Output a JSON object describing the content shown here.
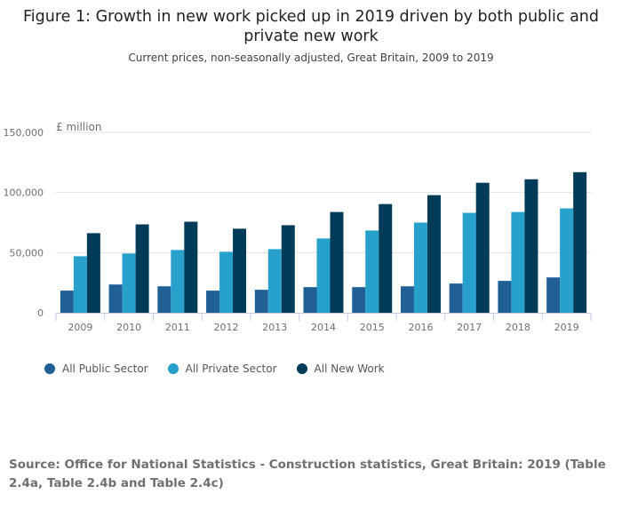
{
  "chart_data": {
    "type": "bar",
    "title": "Figure 1: Growth in new work picked up in 2019 driven by both public and private new work",
    "subtitle": "Current prices, non-seasonally adjusted, Great Britain, 2009 to 2019",
    "ylabel": "£ million",
    "xlabel": "",
    "ylim": [
      0,
      150000
    ],
    "yticks": [
      0,
      50000,
      100000,
      150000
    ],
    "ytick_labels": [
      "0",
      "50,000",
      "100,000",
      "150,000"
    ],
    "grid": true,
    "legend_position": "bottom-left",
    "categories": [
      "2009",
      "2010",
      "2011",
      "2012",
      "2013",
      "2014",
      "2015",
      "2016",
      "2017",
      "2018",
      "2019"
    ],
    "series": [
      {
        "name": "All Public Sector",
        "color": "#206095",
        "values": [
          18400,
          23500,
          22000,
          18400,
          19100,
          21300,
          21300,
          22000,
          24300,
          26500,
          29400
        ]
      },
      {
        "name": "All Private Sector",
        "color": "#27a0cc",
        "values": [
          47000,
          49300,
          52200,
          50700,
          52900,
          61800,
          68400,
          75000,
          83100,
          83800,
          86800
        ]
      },
      {
        "name": "All New Work",
        "color": "#003c57",
        "values": [
          66200,
          73500,
          75700,
          69900,
          72800,
          83800,
          90400,
          97800,
          108100,
          111000,
          116900
        ]
      }
    ]
  },
  "source": "Source: Office for National Statistics - Construction statistics, Great Britain: 2019 (Table 2.4a, Table 2.4b and Table 2.4c)"
}
